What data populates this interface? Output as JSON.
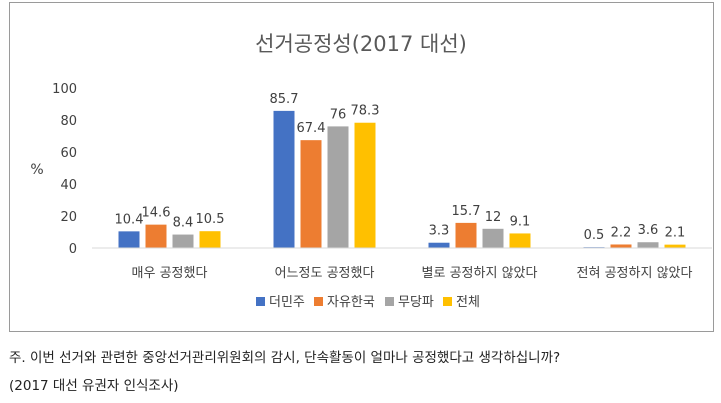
{
  "chart_data": {
    "type": "bar",
    "title": "선거공정성(2017 대선)",
    "ylabel": "%",
    "xlabel": "",
    "ylim": [
      0,
      100
    ],
    "yticks": [
      0,
      20,
      40,
      60,
      80,
      100
    ],
    "grid": false,
    "legend_position": "bottom",
    "categories": [
      "매우 공정했다",
      "어느정도 공정했다",
      "별로 공정하지 않았다",
      "전혀 공정하지 않았다"
    ],
    "series": [
      {
        "name": "더민주",
        "color": "#4472C4",
        "values": [
          10.4,
          85.7,
          3.3,
          0.5
        ]
      },
      {
        "name": "자유한국",
        "color": "#ED7D31",
        "values": [
          14.6,
          67.4,
          15.7,
          2.2
        ]
      },
      {
        "name": "무당파",
        "color": "#A5A5A5",
        "values": [
          8.4,
          76,
          12,
          3.6
        ]
      },
      {
        "name": "전체",
        "color": "#FFC000",
        "values": [
          10.5,
          78.3,
          9.1,
          2.1
        ]
      }
    ]
  },
  "notes": {
    "line1": "주. 이번 선거와 관련한 중앙선거관리위원회의 감시, 단속활동이 얼마나 공정했다고 생각하십니까?",
    "line2": "(2017 대선 유권자 인식조사)"
  }
}
